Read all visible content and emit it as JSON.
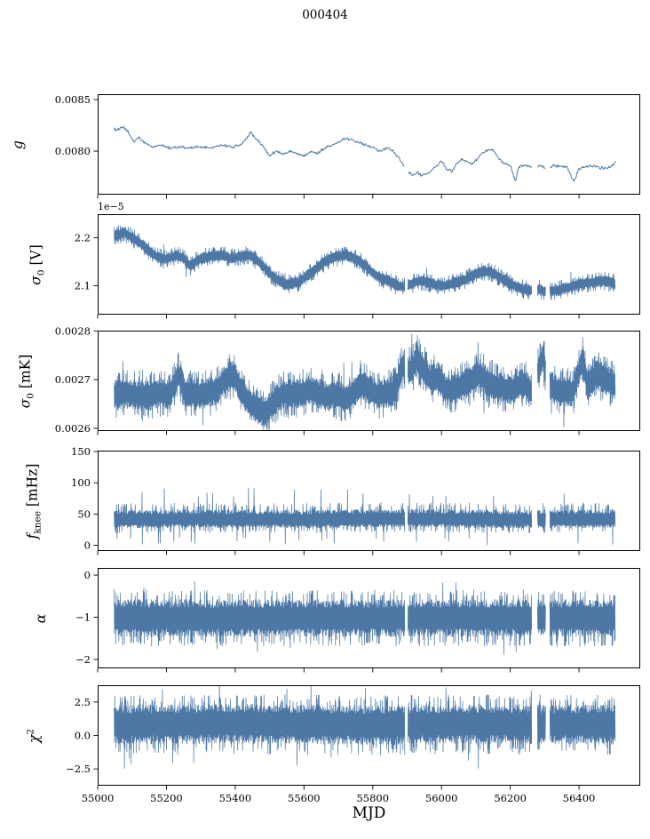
{
  "title": "000404",
  "x_axis": {
    "label": "MJD",
    "min": 55000,
    "max": 56578,
    "ticks": [
      55000,
      55200,
      55400,
      55600,
      55800,
      56000,
      56200,
      56400
    ],
    "tick_labels": [
      "55000",
      "55200",
      "55400",
      "55600",
      "55800",
      "56000",
      "56200",
      "56400"
    ]
  },
  "series": {
    "color": "#4d78a6",
    "data_start": 55048,
    "data_end": 56506,
    "gaps": [
      [
        55894,
        55902
      ],
      [
        56263,
        56279
      ],
      [
        56303,
        56315
      ]
    ]
  },
  "chart_data": [
    {
      "id": "g",
      "type": "line",
      "ylabel": [
        {
          "t": "g",
          "i": true
        }
      ],
      "ylim": [
        0.007578,
        0.008552
      ],
      "yticks": [
        0.008,
        0.0085
      ],
      "ytick_labels": [
        "0.0080",
        "0.0085"
      ],
      "noise": {
        "amp": 1.8e-05
      },
      "trend": [
        [
          55058,
          0.00821
        ],
        [
          55075,
          0.00823
        ],
        [
          55090,
          0.00818
        ],
        [
          55105,
          0.00809
        ],
        [
          55120,
          0.00813
        ],
        [
          55140,
          0.00807
        ],
        [
          55160,
          0.00804
        ],
        [
          55185,
          0.00806
        ],
        [
          55210,
          0.00803
        ],
        [
          55240,
          0.00804
        ],
        [
          55270,
          0.00803
        ],
        [
          55300,
          0.00804
        ],
        [
          55330,
          0.00803
        ],
        [
          55360,
          0.00806
        ],
        [
          55390,
          0.00804
        ],
        [
          55420,
          0.00807
        ],
        [
          55445,
          0.00818
        ],
        [
          55460,
          0.00812
        ],
        [
          55480,
          0.00805
        ],
        [
          55500,
          0.00796
        ],
        [
          55520,
          0.008
        ],
        [
          55540,
          0.00797
        ],
        [
          55560,
          0.008
        ],
        [
          55580,
          0.00797
        ],
        [
          55600,
          0.00796
        ],
        [
          55620,
          0.008
        ],
        [
          55640,
          0.00798
        ],
        [
          55660,
          0.00803
        ],
        [
          55680,
          0.00806
        ],
        [
          55700,
          0.00809
        ],
        [
          55720,
          0.00812
        ],
        [
          55740,
          0.00811
        ],
        [
          55760,
          0.00809
        ],
        [
          55780,
          0.00806
        ],
        [
          55800,
          0.00804
        ],
        [
          55820,
          0.008
        ],
        [
          55840,
          0.00803
        ],
        [
          55860,
          0.008
        ],
        [
          55880,
          0.00791
        ],
        [
          55900,
          0.0078
        ],
        [
          55915,
          0.00777
        ],
        [
          55930,
          0.00779
        ],
        [
          55945,
          0.00776
        ],
        [
          55960,
          0.00778
        ],
        [
          55980,
          0.00784
        ],
        [
          56000,
          0.0079
        ],
        [
          56015,
          0.00783
        ],
        [
          56030,
          0.0078
        ],
        [
          56045,
          0.00788
        ],
        [
          56060,
          0.00793
        ],
        [
          56075,
          0.00789
        ],
        [
          56090,
          0.00788
        ],
        [
          56105,
          0.00792
        ],
        [
          56120,
          0.00799
        ],
        [
          56135,
          0.00801
        ],
        [
          56150,
          0.00802
        ],
        [
          56165,
          0.00794
        ],
        [
          56180,
          0.00788
        ],
        [
          56200,
          0.00786
        ],
        [
          56215,
          0.00771
        ],
        [
          56225,
          0.00785
        ],
        [
          56245,
          0.00786
        ],
        [
          56265,
          0.00784
        ],
        [
          56285,
          0.00786
        ],
        [
          56305,
          0.00783
        ],
        [
          56325,
          0.00786
        ],
        [
          56345,
          0.00785
        ],
        [
          56365,
          0.00784
        ],
        [
          56385,
          0.0077
        ],
        [
          56400,
          0.00783
        ],
        [
          56420,
          0.00785
        ],
        [
          56440,
          0.00786
        ],
        [
          56460,
          0.00784
        ],
        [
          56480,
          0.00783
        ],
        [
          56495,
          0.00786
        ],
        [
          56506,
          0.0079
        ]
      ]
    },
    {
      "id": "sigma0-v",
      "type": "band",
      "offset_label": "1e−5",
      "ylabel": [
        {
          "t": "σ",
          "i": true
        },
        {
          "t": "0",
          "sub": true
        },
        {
          "t": " [V]"
        }
      ],
      "ylim": [
        2.04,
        2.249
      ],
      "yticks": [
        2.1,
        2.2
      ],
      "ytick_labels": [
        "2.1",
        "2.2"
      ],
      "noise": {
        "up": 0.013,
        "down": 0.013,
        "fringe_prob": 0.22,
        "fringe_mult": 1.55,
        "spike_prob": 0.006,
        "spike_mult": 2.6
      },
      "trend": [
        [
          55058,
          2.205
        ],
        [
          55075,
          2.212
        ],
        [
          55090,
          2.205
        ],
        [
          55110,
          2.195
        ],
        [
          55130,
          2.185
        ],
        [
          55150,
          2.172
        ],
        [
          55170,
          2.162
        ],
        [
          55190,
          2.155
        ],
        [
          55210,
          2.158
        ],
        [
          55230,
          2.163
        ],
        [
          55250,
          2.158
        ],
        [
          55268,
          2.14
        ],
        [
          55285,
          2.15
        ],
        [
          55305,
          2.158
        ],
        [
          55325,
          2.16
        ],
        [
          55345,
          2.162
        ],
        [
          55365,
          2.163
        ],
        [
          55385,
          2.158
        ],
        [
          55405,
          2.16
        ],
        [
          55425,
          2.163
        ],
        [
          55445,
          2.162
        ],
        [
          55465,
          2.152
        ],
        [
          55485,
          2.138
        ],
        [
          55505,
          2.122
        ],
        [
          55525,
          2.112
        ],
        [
          55545,
          2.102
        ],
        [
          55565,
          2.105
        ],
        [
          55585,
          2.108
        ],
        [
          55605,
          2.118
        ],
        [
          55625,
          2.13
        ],
        [
          55645,
          2.142
        ],
        [
          55665,
          2.152
        ],
        [
          55685,
          2.158
        ],
        [
          55705,
          2.162
        ],
        [
          55725,
          2.164
        ],
        [
          55745,
          2.158
        ],
        [
          55765,
          2.15
        ],
        [
          55785,
          2.138
        ],
        [
          55805,
          2.124
        ],
        [
          55825,
          2.116
        ],
        [
          55845,
          2.11
        ],
        [
          55865,
          2.102
        ],
        [
          55885,
          2.098
        ],
        [
          55905,
          2.102
        ],
        [
          55925,
          2.108
        ],
        [
          55945,
          2.11
        ],
        [
          55965,
          2.106
        ],
        [
          55985,
          2.102
        ],
        [
          56005,
          2.1
        ],
        [
          56025,
          2.103
        ],
        [
          56045,
          2.108
        ],
        [
          56065,
          2.112
        ],
        [
          56085,
          2.12
        ],
        [
          56105,
          2.127
        ],
        [
          56125,
          2.13
        ],
        [
          56145,
          2.128
        ],
        [
          56165,
          2.12
        ],
        [
          56185,
          2.112
        ],
        [
          56205,
          2.102
        ],
        [
          56225,
          2.096
        ],
        [
          56245,
          2.092
        ],
        [
          56265,
          2.09
        ],
        [
          56285,
          2.092
        ],
        [
          56305,
          2.088
        ],
        [
          56325,
          2.09
        ],
        [
          56345,
          2.092
        ],
        [
          56365,
          2.096
        ],
        [
          56385,
          2.1
        ],
        [
          56405,
          2.104
        ],
        [
          56425,
          2.106
        ],
        [
          56445,
          2.108
        ],
        [
          56465,
          2.11
        ],
        [
          56485,
          2.108
        ],
        [
          56506,
          2.104
        ]
      ]
    },
    {
      "id": "sigma0-mk",
      "type": "band",
      "ylabel": [
        {
          "t": "σ",
          "i": true
        },
        {
          "t": "0",
          "sub": true
        },
        {
          "t": " [mK]"
        }
      ],
      "ylim": [
        0.0025944,
        0.0028005
      ],
      "yticks": [
        0.0026,
        0.0027,
        0.0028
      ],
      "ytick_labels": [
        "0.0026",
        "0.0027",
        "0.0028"
      ],
      "noise": {
        "up": 3.2e-05,
        "down": 3.2e-05,
        "fringe_prob": 0.22,
        "fringe_mult": 1.55,
        "spike_prob": 0.01,
        "spike_mult": 2.3
      },
      "trend": [
        [
          55058,
          0.002668
        ],
        [
          55090,
          0.002672
        ],
        [
          55120,
          0.002667
        ],
        [
          55150,
          0.002668
        ],
        [
          55180,
          0.002673
        ],
        [
          55210,
          0.002668
        ],
        [
          55235,
          0.00271
        ],
        [
          55255,
          0.002675
        ],
        [
          55285,
          0.002668
        ],
        [
          55315,
          0.002673
        ],
        [
          55345,
          0.002678
        ],
        [
          55370,
          0.0027
        ],
        [
          55395,
          0.00271
        ],
        [
          55415,
          0.002682
        ],
        [
          55440,
          0.002652
        ],
        [
          55465,
          0.002638
        ],
        [
          55490,
          0.002632
        ],
        [
          55515,
          0.002658
        ],
        [
          55540,
          0.002672
        ],
        [
          55565,
          0.002668
        ],
        [
          55590,
          0.002673
        ],
        [
          55615,
          0.002678
        ],
        [
          55640,
          0.002672
        ],
        [
          55665,
          0.002665
        ],
        [
          55690,
          0.002668
        ],
        [
          55715,
          0.002662
        ],
        [
          55740,
          0.002668
        ],
        [
          55765,
          0.002694
        ],
        [
          55790,
          0.002678
        ],
        [
          55815,
          0.002668
        ],
        [
          55840,
          0.002672
        ],
        [
          55865,
          0.002678
        ],
        [
          55890,
          0.002732
        ],
        [
          55910,
          0.002716
        ],
        [
          55930,
          0.002742
        ],
        [
          55950,
          0.00272
        ],
        [
          55970,
          0.002698
        ],
        [
          55990,
          0.002706
        ],
        [
          56010,
          0.002682
        ],
        [
          56035,
          0.002678
        ],
        [
          56060,
          0.002688
        ],
        [
          56085,
          0.002696
        ],
        [
          56110,
          0.002712
        ],
        [
          56135,
          0.002696
        ],
        [
          56160,
          0.002688
        ],
        [
          56185,
          0.002682
        ],
        [
          56210,
          0.002678
        ],
        [
          56235,
          0.002694
        ],
        [
          56260,
          0.002678
        ],
        [
          56295,
          0.002746
        ],
        [
          56310,
          0.00269
        ],
        [
          56335,
          0.002678
        ],
        [
          56360,
          0.002675
        ],
        [
          56385,
          0.002678
        ],
        [
          56410,
          0.002746
        ],
        [
          56425,
          0.002688
        ],
        [
          56450,
          0.00271
        ],
        [
          56475,
          0.0027
        ],
        [
          56506,
          0.002688
        ]
      ]
    },
    {
      "id": "fknee",
      "type": "band",
      "ylabel": [
        {
          "t": "f",
          "i": true
        },
        {
          "t": "knee",
          "sub": true
        },
        {
          "t": " [mHz]"
        }
      ],
      "ylim": [
        -9.2,
        151.5
      ],
      "yticks": [
        0,
        50,
        100,
        150
      ],
      "ytick_labels": [
        "0",
        "50",
        "100",
        "150"
      ],
      "noise": {
        "up": 17,
        "down": 13,
        "fringe_prob": 0.2,
        "fringe_mult": 1.6,
        "spike_prob": 0.02,
        "spike_mult": 3.1
      },
      "trend": [
        [
          55048,
          40
        ],
        [
          55300,
          41
        ],
        [
          55600,
          40
        ],
        [
          55900,
          42
        ],
        [
          56200,
          40
        ],
        [
          56506,
          41
        ]
      ]
    },
    {
      "id": "alpha",
      "type": "band",
      "ylabel": [
        {
          "t": "α",
          "i": true
        }
      ],
      "ylim": [
        -2.21,
        0.17
      ],
      "yticks": [
        -2,
        -1,
        0
      ],
      "ytick_labels": [
        "−2",
        "−1",
        "0"
      ],
      "noise": {
        "up": 0.45,
        "down": 0.45,
        "fringe_prob": 0.2,
        "fringe_mult": 1.5,
        "spike_prob": 0.012,
        "spike_mult": 1.95
      },
      "trend": [
        [
          55048,
          -1.02
        ],
        [
          56506,
          -1.02
        ]
      ]
    },
    {
      "id": "chi2",
      "type": "band",
      "ylabel": [
        {
          "t": "χ",
          "i": true
        },
        {
          "t": "2",
          "sup": true
        }
      ],
      "ylim": [
        -3.75,
        3.75
      ],
      "yticks": [
        -2.5,
        0,
        2.5
      ],
      "ytick_labels": [
        "−2.5",
        "0.0",
        "2.5"
      ],
      "noise": {
        "up": 1.45,
        "down": 1.55,
        "fringe_prob": 0.2,
        "fringe_mult": 1.5,
        "spike_prob": 0.01,
        "spike_mult": 2.2
      },
      "trend": [
        [
          55048,
          0.85
        ],
        [
          55400,
          0.92
        ],
        [
          55800,
          0.82
        ],
        [
          56100,
          0.9
        ],
        [
          56506,
          0.85
        ]
      ]
    }
  ]
}
